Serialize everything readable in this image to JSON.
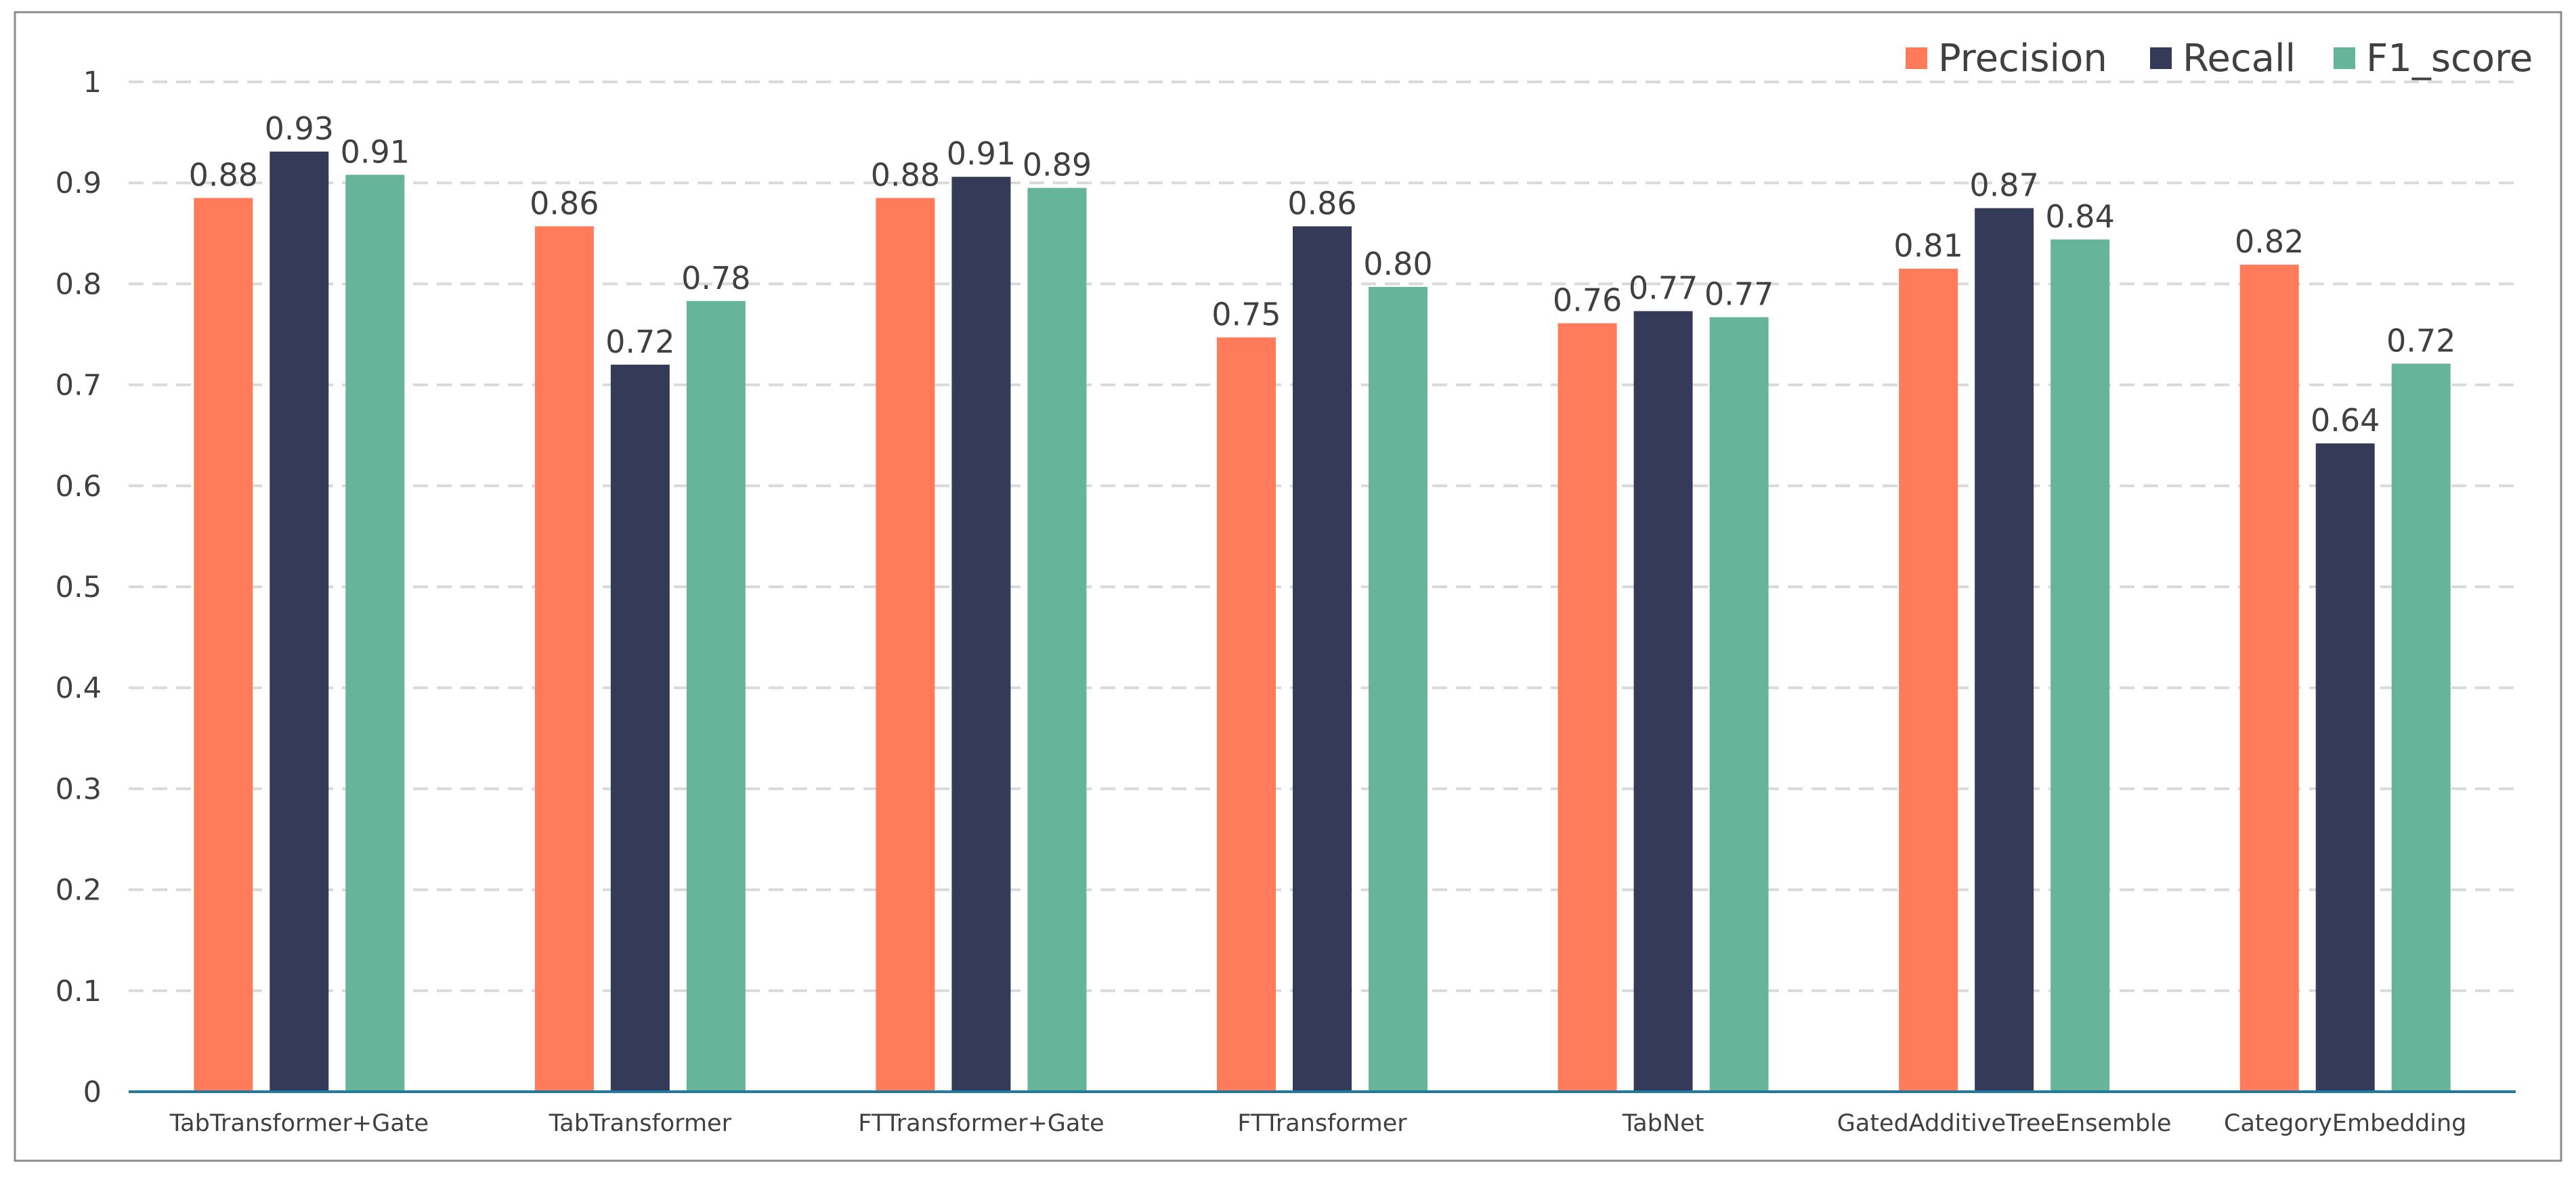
{
  "chart_data": {
    "type": "bar",
    "title": "",
    "xlabel": "",
    "ylabel": "",
    "ylim": [
      0,
      1
    ],
    "yticks": [
      0,
      0.1,
      0.2,
      0.3,
      0.4,
      0.5,
      0.6,
      0.7,
      0.8,
      0.9,
      1
    ],
    "ytick_labels": [
      "0",
      "0.1",
      "0.2",
      "0.3",
      "0.4",
      "0.5",
      "0.6",
      "0.7",
      "0.8",
      "0.9",
      "1"
    ],
    "grid": true,
    "legend_position": "top-right",
    "categories": [
      "TabTransformer+Gate",
      "TabTransformer",
      "FTTransformer+Gate",
      "FTTransformer",
      "TabNet",
      "GatedAdditiveTreeEnsemble",
      "CategoryEmbedding"
    ],
    "series": [
      {
        "name": "Precision",
        "color": "#FF7B5A",
        "values": [
          0.885,
          0.857,
          0.885,
          0.747,
          0.761,
          0.815,
          0.819
        ],
        "labels": [
          "0.88",
          "0.86",
          "0.88",
          "0.75",
          "0.76",
          "0.81",
          "0.82"
        ]
      },
      {
        "name": "Recall",
        "color": "#363A59",
        "values": [
          0.931,
          0.72,
          0.906,
          0.857,
          0.773,
          0.875,
          0.642
        ],
        "labels": [
          "0.93",
          "0.72",
          "0.91",
          "0.86",
          "0.77",
          "0.87",
          "0.64"
        ]
      },
      {
        "name": "F1_score",
        "color": "#66B59A",
        "values": [
          0.908,
          0.783,
          0.895,
          0.797,
          0.767,
          0.844,
          0.721
        ],
        "labels": [
          "0.91",
          "0.78",
          "0.89",
          "0.80",
          "0.77",
          "0.84",
          "0.72"
        ]
      }
    ],
    "colors": {
      "grid": "#D9D9D9",
      "axis": "#1F7A9E",
      "frame": "#8C8C8C",
      "text": "#404040"
    }
  }
}
